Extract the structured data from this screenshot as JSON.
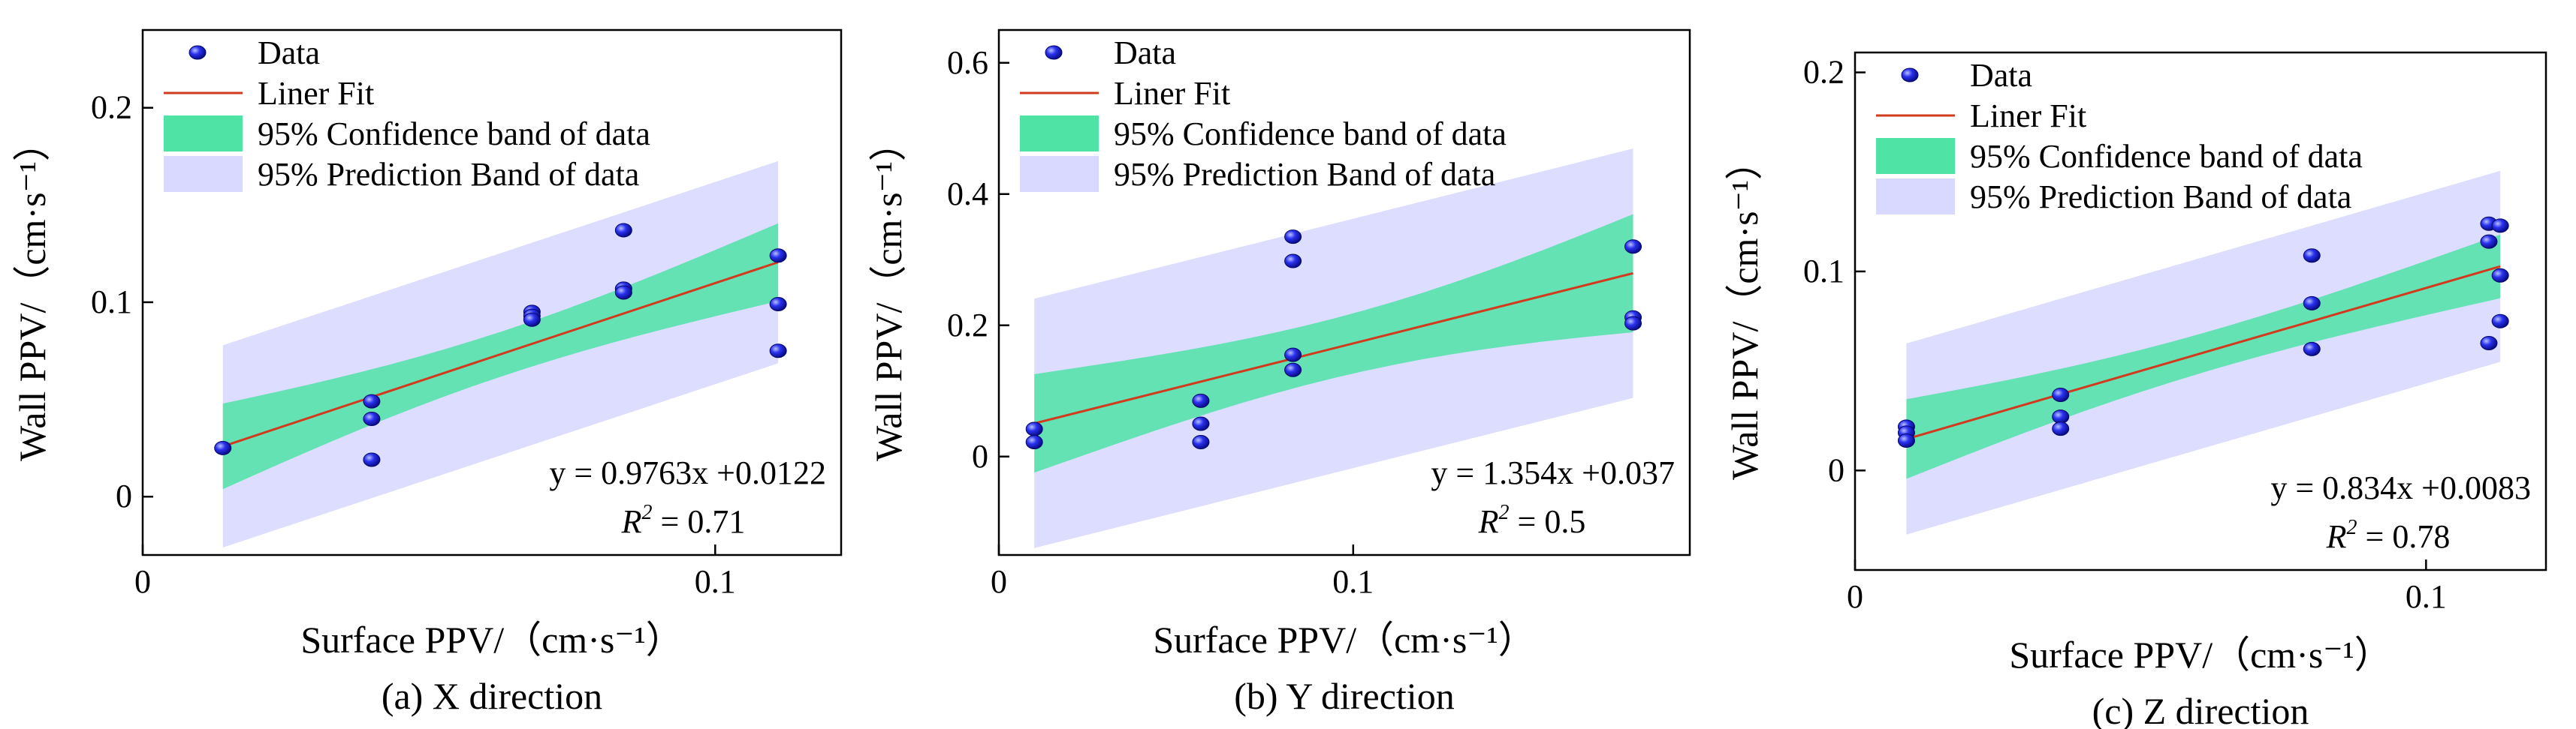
{
  "chart_data": [
    {
      "type": "scatter",
      "caption": "(a) X direction",
      "xlabel": "Surface PPV/（cm·s⁻¹）",
      "ylabel": "Wall PPV/（cm·s⁻¹）",
      "xlim": [
        0,
        0.122
      ],
      "ylim": [
        -0.03,
        0.24
      ],
      "xticks": [
        0,
        0.1
      ],
      "xtick_labels": [
        "0",
        "0.1"
      ],
      "yticks": [
        0,
        0.1,
        0.2
      ],
      "ytick_labels": [
        "0",
        "0.1",
        "0.2"
      ],
      "legend": {
        "position": "top-left",
        "data": "Data",
        "fit": "Liner Fit",
        "confidence": "95% Confidence band of data",
        "prediction": "95% Prediction Band of data"
      },
      "equation": "y = 0.9763x +0.0122",
      "r2_label": "R",
      "r2_sup": "2",
      "r2_value": "= 0.71",
      "fit": {
        "slope": 0.9763,
        "intercept": 0.0122,
        "x_range": [
          0.014,
          0.111
        ]
      },
      "confidence_band": {
        "x": [
          0.014,
          0.111
        ],
        "half_width": [
          0.022,
          0.02
        ],
        "center_offset": 0.0
      },
      "prediction_band": {
        "x": [
          0.014,
          0.111
        ],
        "half_width": [
          0.052,
          0.052
        ]
      },
      "points": {
        "x": [
          0.014,
          0.04,
          0.04,
          0.04,
          0.068,
          0.068,
          0.068,
          0.084,
          0.084,
          0.084,
          0.111,
          0.111,
          0.111
        ],
        "y": [
          0.025,
          0.049,
          0.04,
          0.019,
          0.095,
          0.093,
          0.091,
          0.137,
          0.107,
          0.105,
          0.124,
          0.099,
          0.075
        ]
      }
    },
    {
      "type": "scatter",
      "caption": "(b) Y direction",
      "xlabel": "Surface PPV/（cm·s⁻¹）",
      "ylabel": "Wall PPV/（cm·s⁻¹）",
      "xlim": [
        0,
        0.195
      ],
      "ylim": [
        -0.15,
        0.65
      ],
      "xticks": [
        0,
        0.1
      ],
      "xtick_labels": [
        "0",
        "0.1"
      ],
      "yticks": [
        0,
        0.2,
        0.4,
        0.6
      ],
      "ytick_labels": [
        "0",
        "0.2",
        "0.4",
        "0.6"
      ],
      "legend": {
        "position": "top-left",
        "data": "Data",
        "fit": "Liner Fit",
        "confidence": "95% Confidence band of data",
        "prediction": "95% Prediction Band of data"
      },
      "equation": "y = 1.354x +0.037",
      "r2_label": "R",
      "r2_sup": "2",
      "r2_value": "= 0.5",
      "fit": {
        "slope": 1.354,
        "intercept": 0.037,
        "x_range": [
          0.01,
          0.179
        ]
      },
      "confidence_band": {
        "x": [
          0.01,
          0.179
        ],
        "half_width": [
          0.075,
          0.09
        ]
      },
      "prediction_band": {
        "x": [
          0.01,
          0.179
        ],
        "half_width": [
          0.19,
          0.19
        ]
      },
      "points": {
        "x": [
          0.01,
          0.01,
          0.057,
          0.057,
          0.057,
          0.083,
          0.083,
          0.083,
          0.083,
          0.179,
          0.179,
          0.179
        ],
        "y": [
          0.042,
          0.022,
          0.085,
          0.05,
          0.022,
          0.335,
          0.298,
          0.155,
          0.132,
          0.32,
          0.212,
          0.203
        ]
      }
    },
    {
      "type": "scatter",
      "caption": "(c) Z direction",
      "xlabel": "Surface PPV/（cm·s⁻¹）",
      "ylabel": "Wall PPV/（cm·s⁻¹）",
      "xlim": [
        0,
        0.121
      ],
      "ylim": [
        -0.05,
        0.21
      ],
      "xticks": [
        0,
        0.1
      ],
      "xtick_labels": [
        "0",
        "0.1"
      ],
      "yticks": [
        0,
        0.1,
        0.2
      ],
      "ytick_labels": [
        "0",
        "0.1",
        "0.2"
      ],
      "legend": {
        "position": "top-left",
        "data": "Data",
        "fit": "Liner Fit",
        "confidence": "95% Confidence band of data",
        "prediction": "95% Prediction Band of data"
      },
      "equation": "y = 0.834x +0.0083",
      "r2_label": "R",
      "r2_sup": "2",
      "r2_value": "= 0.78",
      "fit": {
        "slope": 0.834,
        "intercept": 0.0083,
        "x_range": [
          0.009,
          0.113
        ]
      },
      "confidence_band": {
        "x": [
          0.009,
          0.113
        ],
        "half_width": [
          0.02,
          0.016
        ]
      },
      "prediction_band": {
        "x": [
          0.009,
          0.113
        ],
        "half_width": [
          0.048,
          0.048
        ]
      },
      "points": {
        "x": [
          0.009,
          0.009,
          0.009,
          0.036,
          0.036,
          0.036,
          0.08,
          0.08,
          0.08,
          0.111,
          0.111,
          0.111,
          0.113,
          0.113,
          0.113
        ],
        "y": [
          0.022,
          0.019,
          0.015,
          0.038,
          0.027,
          0.021,
          0.108,
          0.084,
          0.061,
          0.124,
          0.115,
          0.064,
          0.123,
          0.098,
          0.075
        ]
      }
    }
  ],
  "colors": {
    "point": "#1a1ee6",
    "point_highlight": "#aab4ff",
    "fit_line": "#d23a1e",
    "confidence": "#4fe3a6",
    "prediction": "#d9d9ff",
    "axis": "#000000"
  }
}
